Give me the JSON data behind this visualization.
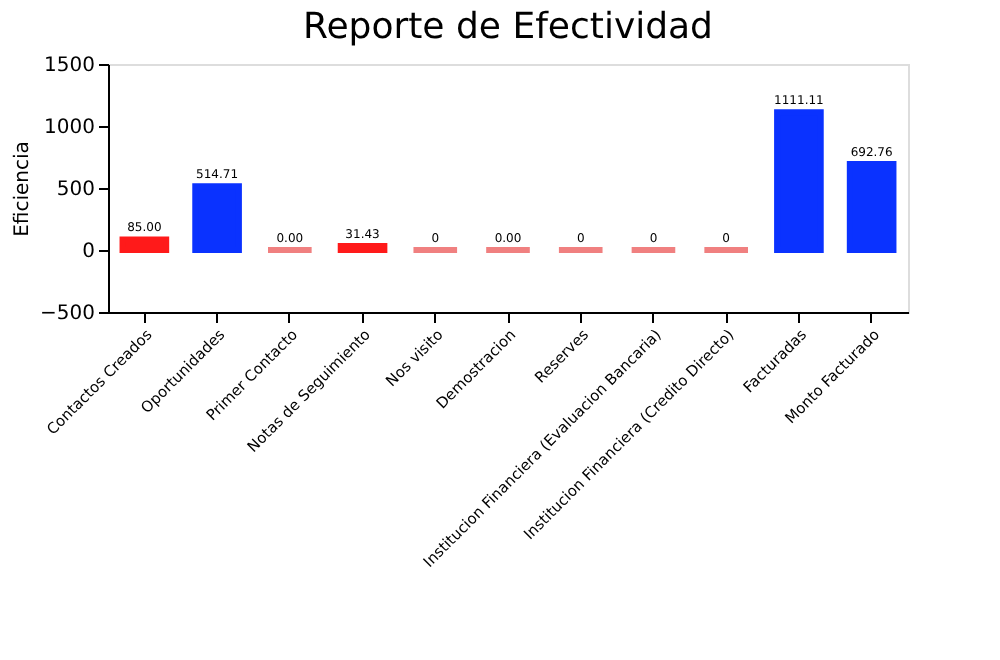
{
  "chart_data": {
    "type": "bar",
    "title": "Reporte de Efectividad",
    "ylabel": "Eficiencia",
    "categories": [
      "Contactos Creados",
      "Oportunidades",
      "Primer Contacto",
      "Notas de Seguimiento",
      "Nos visito",
      "Demostracion",
      "Reserves",
      "Institucion Financiera (Evaluacion Bancaria)",
      "Institucion Financiera (Credito Directo)",
      "Facturadas",
      "Monto Facturado"
    ],
    "values": [
      85.0,
      514.71,
      0.0,
      31.43,
      0,
      0.0,
      0,
      0,
      0,
      1111.11,
      692.76
    ],
    "colors": [
      "#ff1a1a",
      "#0a32ff",
      "#f08080",
      "#ff1a1a",
      "#f08080",
      "#f08080",
      "#f08080",
      "#f08080",
      "#f08080",
      "#0a32ff",
      "#0a32ff"
    ],
    "value_labels": [
      "85.00",
      "514.71",
      "0.00",
      "31.43",
      "0",
      "0.00",
      "0",
      "0",
      "0",
      "1111.11",
      "692.76"
    ],
    "ylim": [
      -500,
      1500
    ],
    "yticks": [
      -500,
      0,
      500,
      1000,
      1500
    ],
    "grid": false
  }
}
